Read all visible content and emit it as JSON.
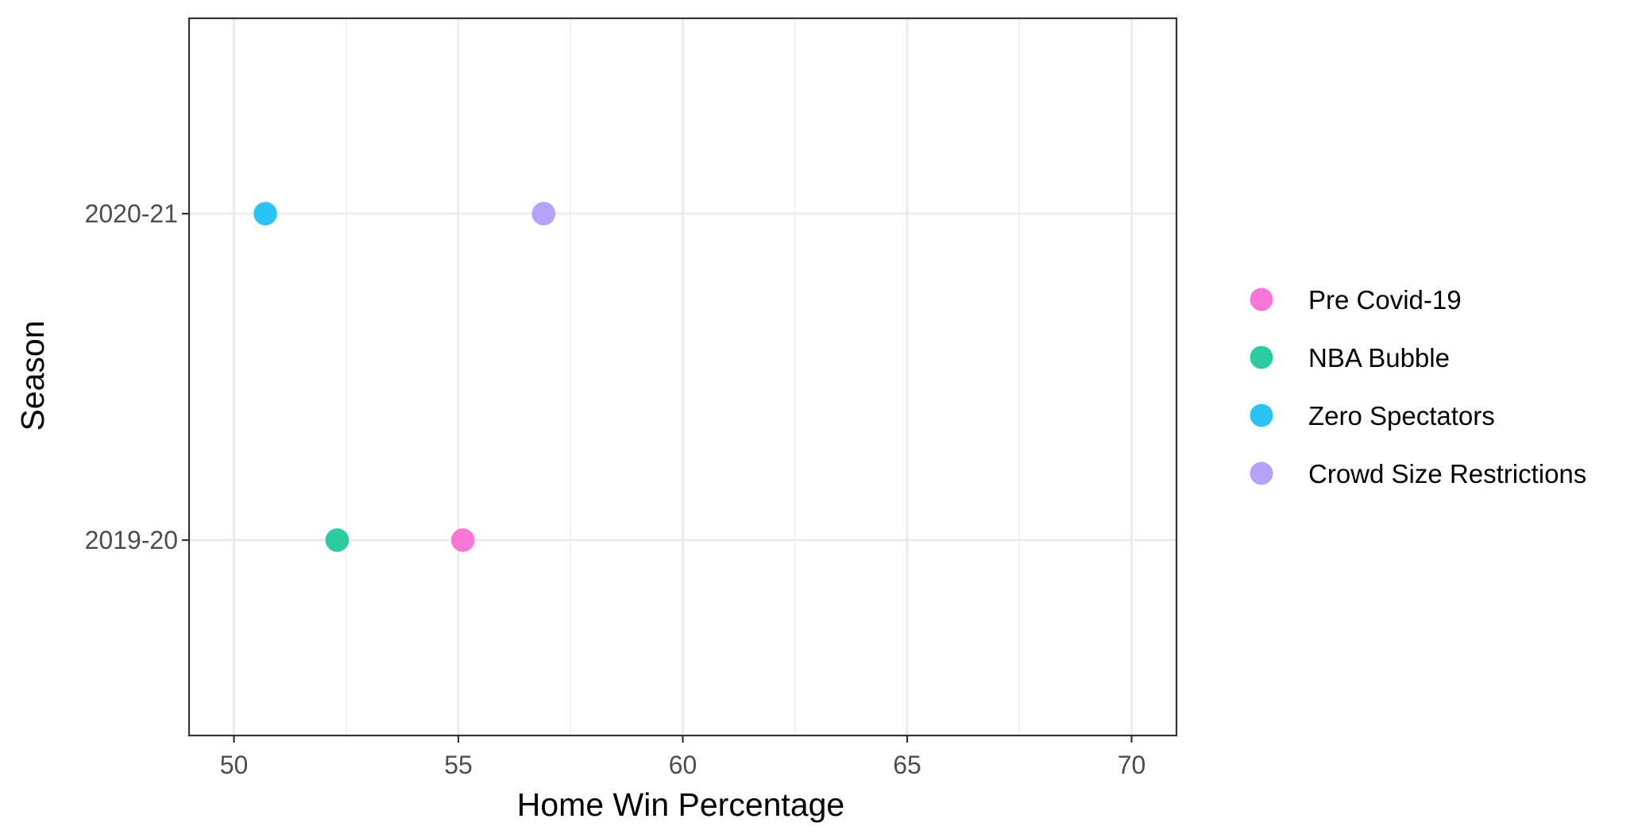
{
  "chart_data": {
    "type": "scatter",
    "title": "",
    "xlabel": "Home Win Percentage",
    "ylabel": "Season",
    "xlim": [
      49,
      71
    ],
    "x_ticks": [
      50,
      55,
      60,
      65,
      70
    ],
    "x_minor_ticks": [
      52.5,
      57.5,
      62.5,
      67.5
    ],
    "categories": [
      "2019-20",
      "2020-21"
    ],
    "grid": true,
    "legend_position": "right",
    "series": [
      {
        "name": "Pre Covid-19",
        "color": "#f776d6",
        "points": [
          {
            "y": "2019-20",
            "x": 55.1
          }
        ]
      },
      {
        "name": "NBA Bubble",
        "color": "#2ecba0",
        "points": [
          {
            "y": "2019-20",
            "x": 52.3
          }
        ]
      },
      {
        "name": "Zero Spectators",
        "color": "#2bc4f2",
        "points": [
          {
            "y": "2020-21",
            "x": 50.7
          }
        ]
      },
      {
        "name": "Crowd Size Restrictions",
        "color": "#b3a2f7",
        "points": [
          {
            "y": "2020-21",
            "x": 56.9
          }
        ]
      }
    ]
  }
}
